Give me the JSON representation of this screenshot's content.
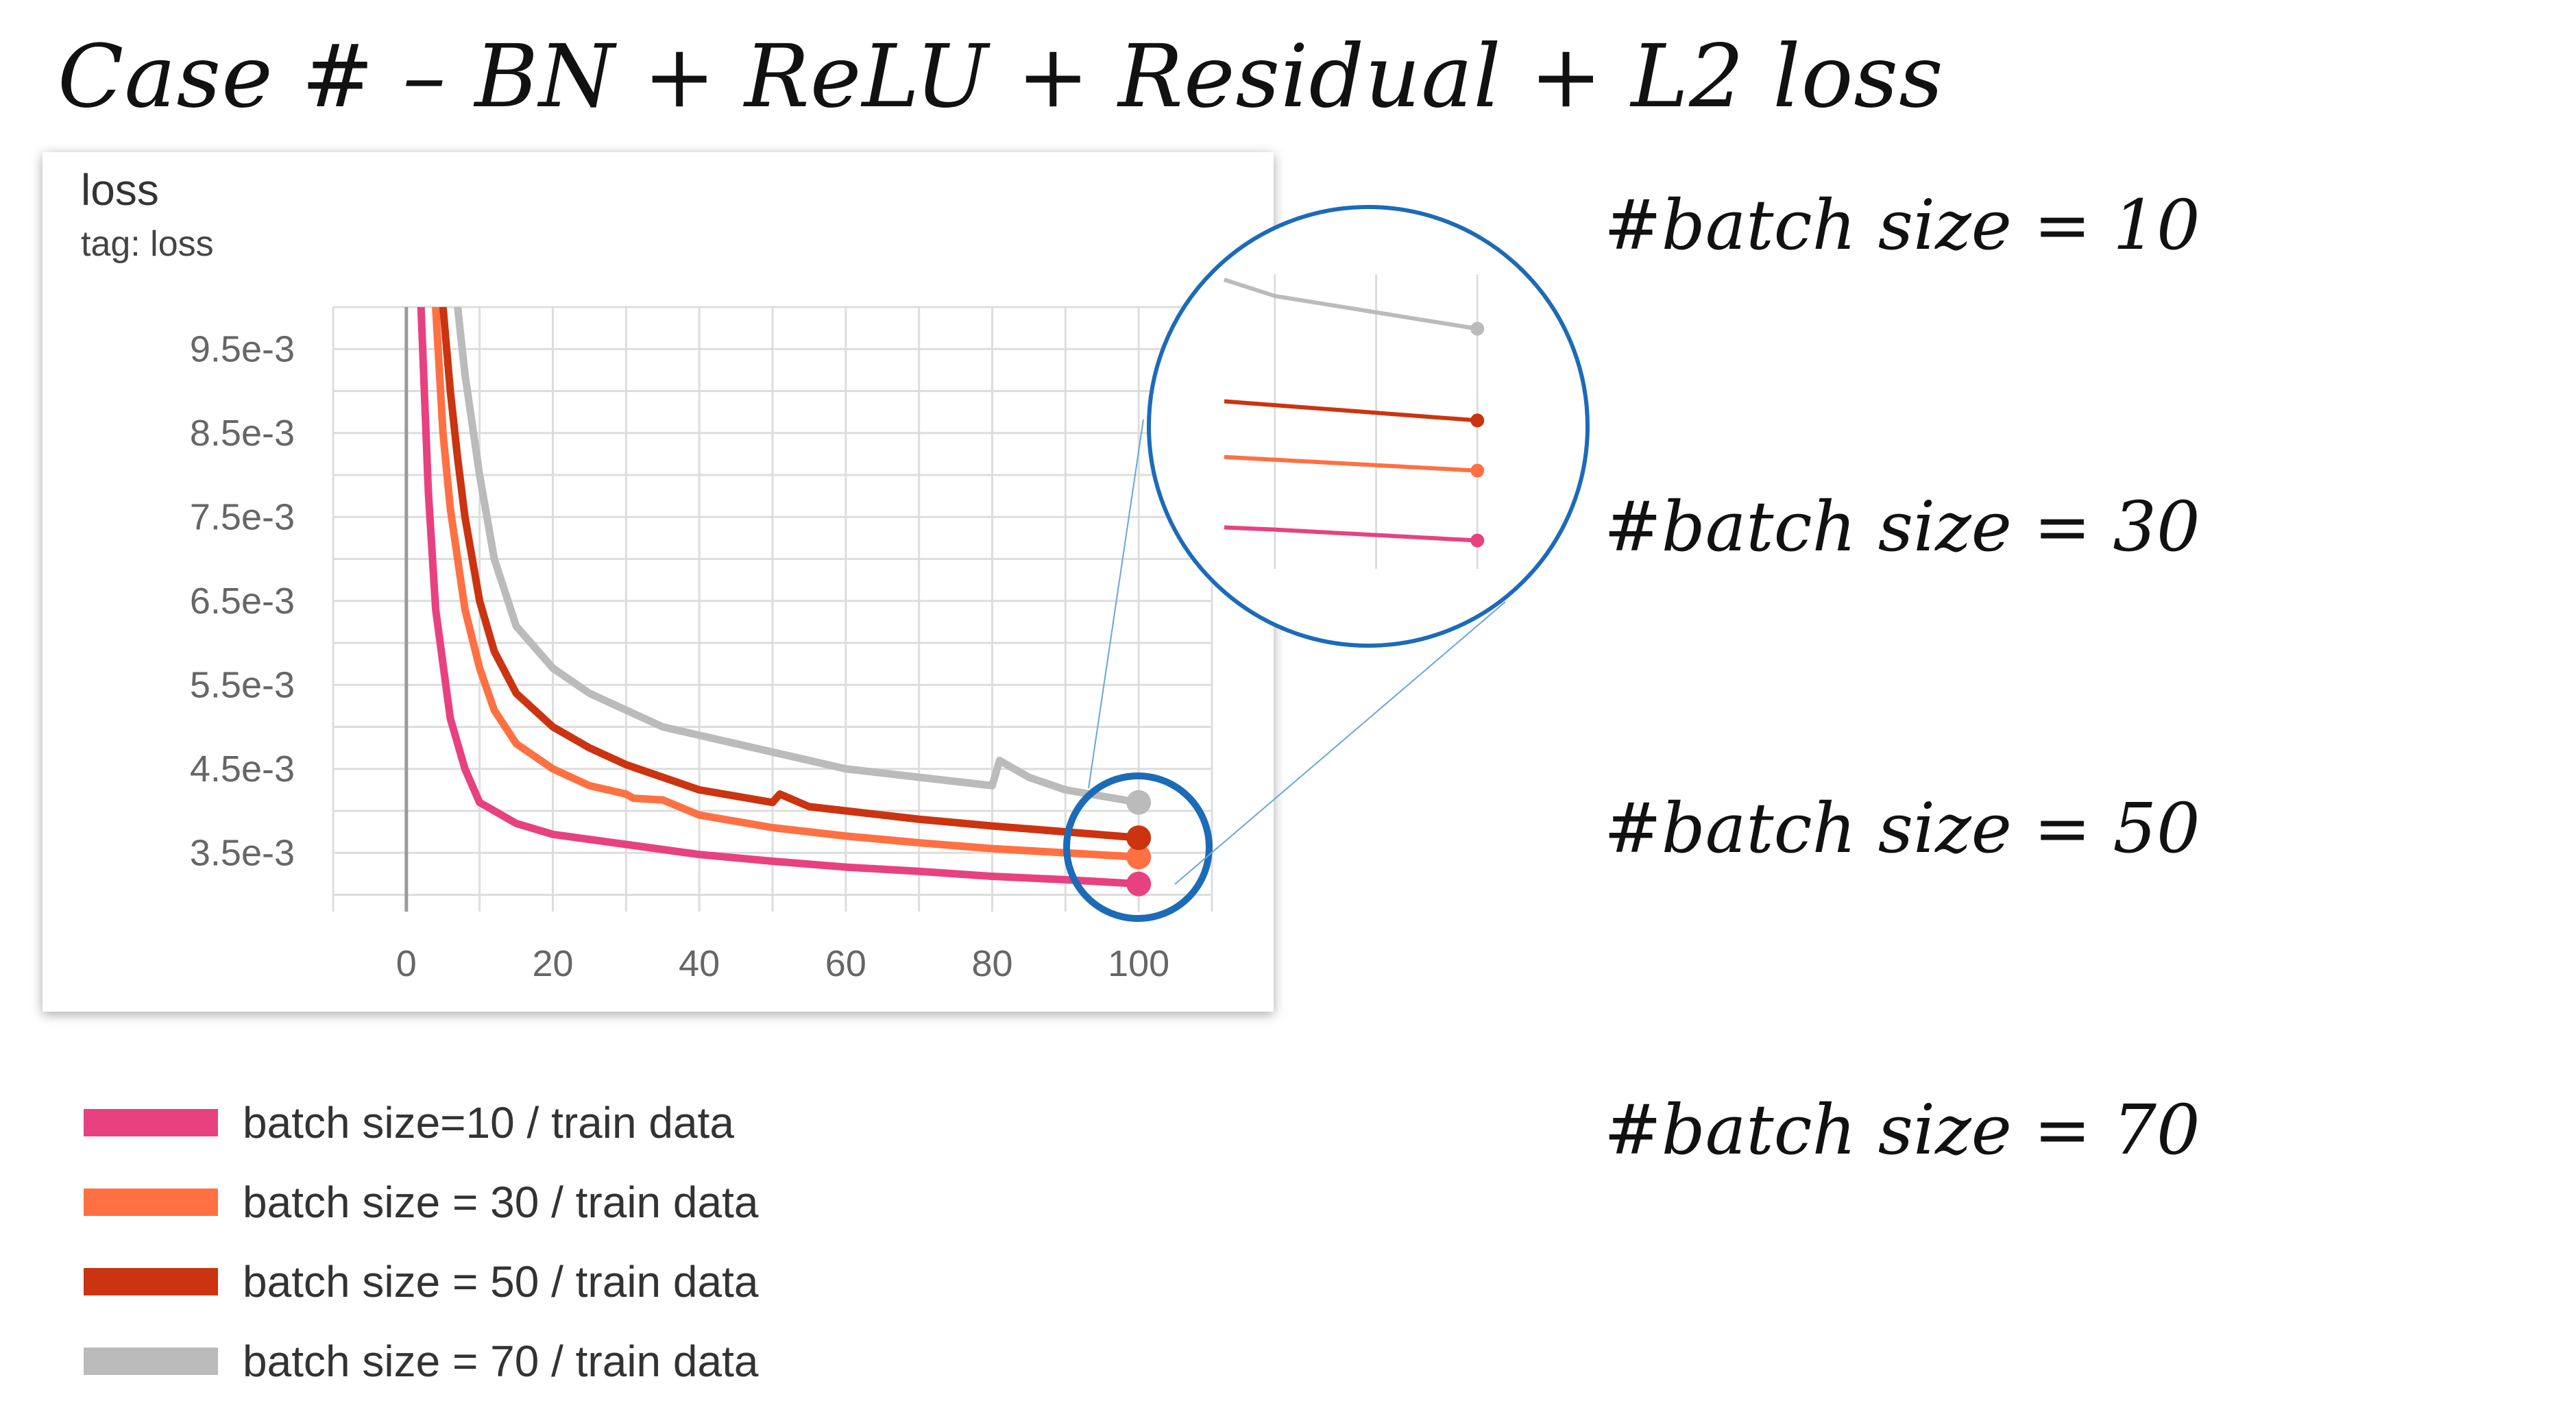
{
  "heading": "Case # – BN + ReLU + Residual + L2 loss",
  "card": {
    "title": "loss",
    "tag": "tag: loss"
  },
  "annotations": [
    "#batch size = 10",
    "#batch size = 30",
    "#batch size = 50",
    "#batch size = 70"
  ],
  "colors": {
    "bs10": "#e8417f",
    "bs30": "#ff7043",
    "bs50": "#cc3311",
    "bs70": "#bbbbbb",
    "zoom_circle": "#1c6bb8"
  },
  "chart_data": {
    "type": "line",
    "title": "loss",
    "subtitle": "tag: loss",
    "xlabel": "",
    "ylabel": "",
    "xlim": [
      -10,
      110
    ],
    "ylim": [
      0.0028,
      0.01
    ],
    "x_ticks": [
      "0",
      "20",
      "40",
      "60",
      "80",
      "100"
    ],
    "y_ticks": [
      "9.5e-3",
      "8.5e-3",
      "7.5e-3",
      "6.5e-3",
      "5.5e-3",
      "4.5e-3",
      "3.5e-3"
    ],
    "y_tick_values": [
      0.0095,
      0.0085,
      0.0075,
      0.0065,
      0.0055,
      0.0045,
      0.0035
    ],
    "grid": true,
    "legend_position": "below",
    "series": [
      {
        "name": "batch size=10 / train data",
        "color": "#e8417f",
        "x": [
          2,
          3,
          4,
          6,
          8,
          10,
          15,
          20,
          30,
          40,
          50,
          60,
          70,
          80,
          90,
          100
        ],
        "y": [
          0.01,
          0.0078,
          0.0064,
          0.0051,
          0.0045,
          0.0041,
          0.00385,
          0.00372,
          0.0036,
          0.00348,
          0.0034,
          0.00333,
          0.00328,
          0.00322,
          0.00318,
          0.00313
        ]
      },
      {
        "name": "batch size = 30 / train data",
        "color": "#ff7043",
        "x": [
          4,
          5,
          6,
          8,
          10,
          12,
          15,
          20,
          25,
          30,
          31,
          35,
          40,
          50,
          60,
          70,
          80,
          90,
          100
        ],
        "y": [
          0.01,
          0.0085,
          0.0076,
          0.0064,
          0.0057,
          0.0052,
          0.0048,
          0.0045,
          0.0043,
          0.0042,
          0.00415,
          0.00413,
          0.00395,
          0.0038,
          0.0037,
          0.00362,
          0.00355,
          0.0035,
          0.00345
        ]
      },
      {
        "name": "batch size = 50 / train data",
        "color": "#cc3311",
        "x": [
          5,
          6,
          7,
          8,
          10,
          12,
          15,
          20,
          25,
          30,
          35,
          40,
          50,
          51,
          55,
          60,
          70,
          80,
          90,
          100
        ],
        "y": [
          0.01,
          0.009,
          0.0082,
          0.0075,
          0.0065,
          0.0059,
          0.0054,
          0.005,
          0.00475,
          0.00455,
          0.0044,
          0.00425,
          0.0041,
          0.0042,
          0.00405,
          0.004,
          0.0039,
          0.00382,
          0.00375,
          0.00368
        ]
      },
      {
        "name": "batch size = 70 / train data",
        "color": "#bbbbbb",
        "x": [
          7,
          8,
          10,
          12,
          15,
          20,
          25,
          30,
          35,
          40,
          50,
          60,
          70,
          80,
          81,
          82,
          85,
          90,
          100
        ],
        "y": [
          0.01,
          0.0092,
          0.008,
          0.007,
          0.0062,
          0.0057,
          0.0054,
          0.0052,
          0.005,
          0.0049,
          0.0047,
          0.0045,
          0.0044,
          0.0043,
          0.0046,
          0.00455,
          0.0044,
          0.00425,
          0.0041
        ]
      }
    ]
  }
}
